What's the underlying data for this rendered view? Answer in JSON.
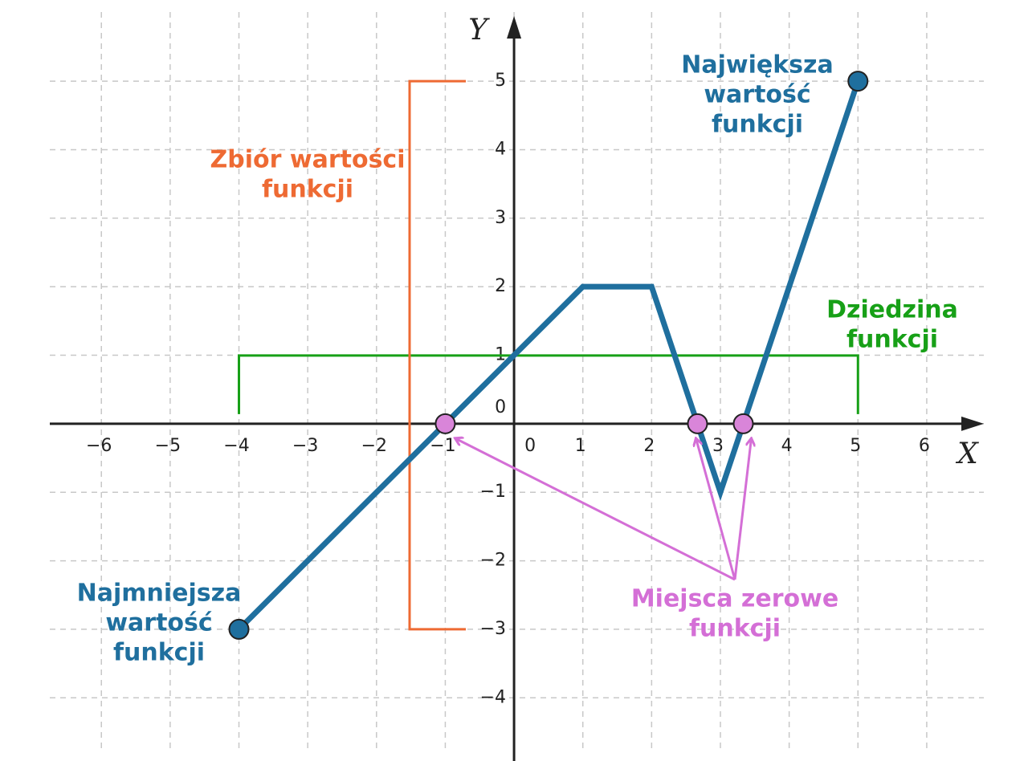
{
  "chart_data": {
    "type": "line",
    "x_label": "X",
    "y_label": "Y",
    "xlim": [
      -6.75,
      6.83
    ],
    "ylim": [
      -4.77,
      5.95
    ],
    "xticks": [
      {
        "value": -6,
        "label": "−6"
      },
      {
        "value": -5,
        "label": "−5"
      },
      {
        "value": -4,
        "label": "−4"
      },
      {
        "value": -3,
        "label": "−3"
      },
      {
        "value": -2,
        "label": "−2"
      },
      {
        "value": -1,
        "label": "−1"
      },
      0,
      1,
      2,
      3,
      4,
      5,
      6
    ],
    "yticks": [
      {
        "value": -4,
        "label": "−4"
      },
      {
        "value": -3,
        "label": "−3"
      },
      {
        "value": -2,
        "label": "−2"
      },
      {
        "value": -1,
        "label": "−1"
      },
      0,
      1,
      2,
      3,
      4,
      5
    ],
    "grid": true,
    "series": [
      {
        "color": "#1f6f9e",
        "x": [
          -4,
          1,
          2,
          3,
          5
        ],
        "values": [
          -3,
          2,
          2,
          -1,
          5
        ]
      }
    ],
    "max": {
      "x": 5,
      "value": 5,
      "label": [
        "Największa",
        "wartość",
        "funkcji"
      ],
      "color": "#1f6f9e"
    },
    "min": {
      "x": -4,
      "value": -3,
      "label": [
        "Najmniejsza",
        "wartość",
        "funkcji"
      ],
      "color": "#1f6f9e"
    },
    "zeros": {
      "x": [
        -1,
        2.667,
        3.333
      ],
      "label": [
        "Miejsca zerowe",
        "funkcji"
      ],
      "color": "#d46fd6"
    },
    "domain": {
      "from": -4,
      "to": 5,
      "label": [
        "Dziedzina",
        "funkcji"
      ],
      "color": "#17a017"
    },
    "range": {
      "from": -3,
      "to": 5,
      "label": [
        "Zbiór wartości",
        "funkcji"
      ],
      "color": "#ee6a33"
    }
  }
}
